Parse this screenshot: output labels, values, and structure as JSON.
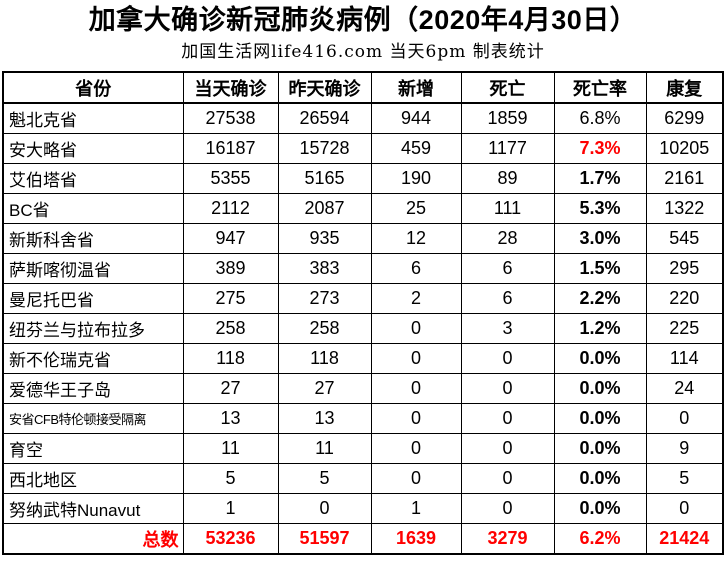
{
  "page": {
    "title": "加拿大确诊新冠肺炎病例（2020年4月30日）",
    "subtitle": "加国生活网life416.com 当天6pm 制表统计"
  },
  "colors": {
    "highlight_red": "#ff0000",
    "text": "#000000",
    "border": "#000000",
    "background": "#ffffff"
  },
  "chart_data": {
    "type": "table",
    "title": "加拿大确诊新冠肺炎病例（2020年4月30日）",
    "subtitle": "加国生活网life416.com 当天6pm 制表统计",
    "columns": [
      "省份",
      "当天确诊",
      "昨天确诊",
      "新增",
      "死亡",
      "死亡率",
      "康复"
    ],
    "rows": [
      {
        "cells": [
          "魁北克省",
          "27538",
          "26594",
          "944",
          "1859",
          "6.8%",
          "6299"
        ],
        "rate_bold": false,
        "rate_red": false,
        "small_label": false
      },
      {
        "cells": [
          "安大略省",
          "16187",
          "15728",
          "459",
          "1177",
          "7.3%",
          "10205"
        ],
        "rate_bold": true,
        "rate_red": true,
        "small_label": false
      },
      {
        "cells": [
          "艾伯塔省",
          "5355",
          "5165",
          "190",
          "89",
          "1.7%",
          "2161"
        ],
        "rate_bold": true,
        "rate_red": false,
        "small_label": false
      },
      {
        "cells": [
          "BC省",
          "2112",
          "2087",
          "25",
          "111",
          "5.3%",
          "1322"
        ],
        "rate_bold": true,
        "rate_red": false,
        "small_label": false
      },
      {
        "cells": [
          "新斯科舍省",
          "947",
          "935",
          "12",
          "28",
          "3.0%",
          "545"
        ],
        "rate_bold": true,
        "rate_red": false,
        "small_label": false
      },
      {
        "cells": [
          "萨斯喀彻温省",
          "389",
          "383",
          "6",
          "6",
          "1.5%",
          "295"
        ],
        "rate_bold": true,
        "rate_red": false,
        "small_label": false
      },
      {
        "cells": [
          "曼尼托巴省",
          "275",
          "273",
          "2",
          "6",
          "2.2%",
          "220"
        ],
        "rate_bold": true,
        "rate_red": false,
        "small_label": false
      },
      {
        "cells": [
          "纽芬兰与拉布拉多",
          "258",
          "258",
          "0",
          "3",
          "1.2%",
          "225"
        ],
        "rate_bold": true,
        "rate_red": false,
        "small_label": false
      },
      {
        "cells": [
          "新不伦瑞克省",
          "118",
          "118",
          "0",
          "0",
          "0.0%",
          "114"
        ],
        "rate_bold": true,
        "rate_red": false,
        "small_label": false
      },
      {
        "cells": [
          "爱德华王子岛",
          "27",
          "27",
          "0",
          "0",
          "0.0%",
          "24"
        ],
        "rate_bold": true,
        "rate_red": false,
        "small_label": false
      },
      {
        "cells": [
          "安省CFB特伦顿接受隔离",
          "13",
          "13",
          "0",
          "0",
          "0.0%",
          "0"
        ],
        "rate_bold": true,
        "rate_red": false,
        "small_label": true
      },
      {
        "cells": [
          "育空",
          "11",
          "11",
          "0",
          "0",
          "0.0%",
          "9"
        ],
        "rate_bold": true,
        "rate_red": false,
        "small_label": false
      },
      {
        "cells": [
          "西北地区",
          "5",
          "5",
          "0",
          "0",
          "0.0%",
          "5"
        ],
        "rate_bold": true,
        "rate_red": false,
        "small_label": false
      },
      {
        "cells": [
          "努纳武特Nunavut",
          "1",
          "0",
          "1",
          "0",
          "0.0%",
          "0"
        ],
        "rate_bold": true,
        "rate_red": false,
        "small_label": false
      }
    ],
    "total_row": {
      "cells": [
        "总数",
        "53236",
        "51597",
        "1639",
        "3279",
        "6.2%",
        "21424"
      ]
    }
  }
}
